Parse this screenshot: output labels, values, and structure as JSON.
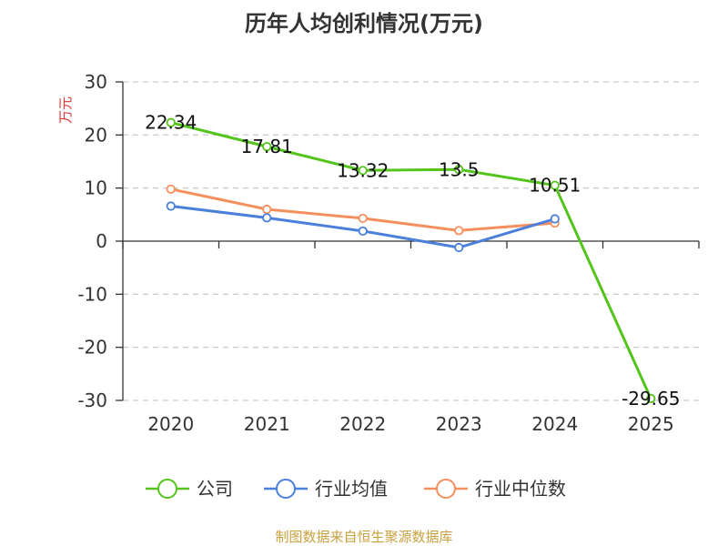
{
  "chart_data": {
    "type": "line",
    "title": "历年人均创利情况(万元)",
    "ylabel": "万元",
    "categories": [
      "2020",
      "2021",
      "2022",
      "2023",
      "2024",
      "2025"
    ],
    "ylim": [
      -30,
      30
    ],
    "yticks": [
      30,
      20,
      10,
      0,
      -10,
      -20,
      -30
    ],
    "grid": true,
    "legend_position": "bottom",
    "series": [
      {
        "name": "公司",
        "color": "#52c41a",
        "values": [
          22.34,
          17.81,
          13.32,
          13.5,
          10.51,
          -29.65
        ],
        "labels": [
          "22.34",
          "17.81",
          "13.32",
          "13.5",
          "10.51",
          "-29.65"
        ]
      },
      {
        "name": "行业均值",
        "color": "#4a7fdb",
        "values": [
          6.6,
          4.4,
          1.9,
          -1.2,
          4.2,
          null
        ]
      },
      {
        "name": "行业中位数",
        "color": "#f5905e",
        "values": [
          9.8,
          6.0,
          4.3,
          2.0,
          3.4,
          null
        ]
      }
    ],
    "source": "制图数据来自恒生聚源数据库"
  },
  "colors": {
    "axis": "#333333",
    "grid": "#cccccc",
    "ylabel": "#e03030",
    "source": "#c8a040"
  }
}
